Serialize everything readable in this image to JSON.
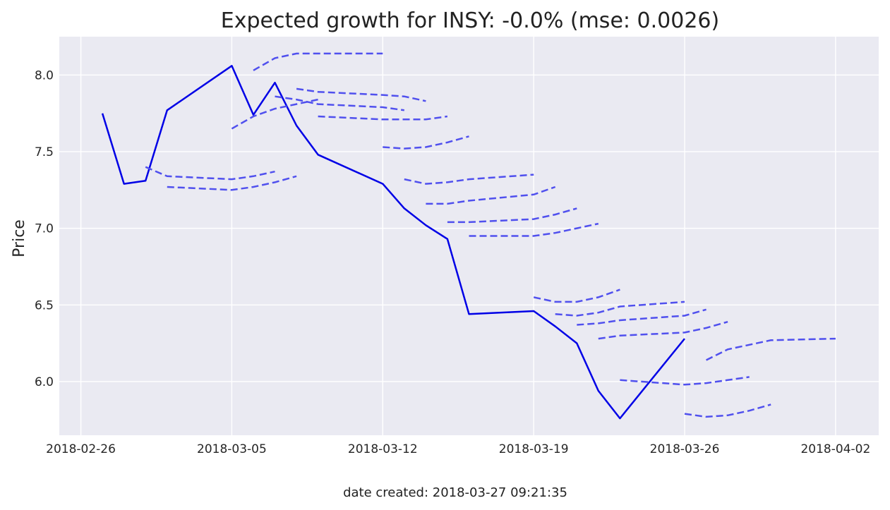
{
  "chart_data": {
    "type": "line",
    "title": "Expected growth for INSY: -0.0% (mse: 0.0026)",
    "xlabel": "",
    "ylabel": "Price",
    "footer": "date created: 2018-03-27 09:21:35",
    "x_ticks": [
      "2018-02-26",
      "2018-03-05",
      "2018-03-12",
      "2018-03-19",
      "2018-03-26",
      "2018-04-02"
    ],
    "y_ticks": [
      "6.0",
      "6.5",
      "7.0",
      "7.5",
      "8.0"
    ],
    "xlim": [
      "2018-02-25",
      "2018-04-04"
    ],
    "ylim": [
      5.65,
      8.25
    ],
    "grid": true,
    "background": "#eaeaf2",
    "colors": {
      "actual": "#0000e6",
      "forecast": "#5050ee"
    },
    "series": [
      {
        "style": "solid",
        "x": [
          "2018-02-27",
          "2018-02-28",
          "2018-03-01",
          "2018-03-02",
          "2018-03-05",
          "2018-03-06",
          "2018-03-07",
          "2018-03-08",
          "2018-03-09",
          "2018-03-12",
          "2018-03-13",
          "2018-03-14",
          "2018-03-15",
          "2018-03-16",
          "2018-03-19",
          "2018-03-20",
          "2018-03-21",
          "2018-03-22",
          "2018-03-23",
          "2018-03-26"
        ],
        "values": [
          7.75,
          7.29,
          7.31,
          7.77,
          8.06,
          7.74,
          7.95,
          7.67,
          7.48,
          7.29,
          7.13,
          7.02,
          6.93,
          6.44,
          6.46,
          6.36,
          6.25,
          5.94,
          5.76,
          6.28
        ]
      },
      {
        "style": "dashed",
        "x": [
          "2018-03-01",
          "2018-03-02",
          "2018-03-05",
          "2018-03-06",
          "2018-03-07"
        ],
        "values": [
          7.4,
          7.34,
          7.32,
          7.34,
          7.37
        ]
      },
      {
        "style": "dashed",
        "x": [
          "2018-03-02",
          "2018-03-05",
          "2018-03-06",
          "2018-03-07",
          "2018-03-08"
        ],
        "values": [
          7.27,
          7.25,
          7.27,
          7.3,
          7.34
        ]
      },
      {
        "style": "dashed",
        "x": [
          "2018-03-05",
          "2018-03-06",
          "2018-03-07",
          "2018-03-08",
          "2018-03-09"
        ],
        "values": [
          7.65,
          7.73,
          7.78,
          7.81,
          7.84
        ]
      },
      {
        "style": "dashed",
        "x": [
          "2018-03-06",
          "2018-03-07",
          "2018-03-08",
          "2018-03-09",
          "2018-03-12"
        ],
        "values": [
          8.03,
          8.11,
          8.14,
          8.14,
          8.14
        ]
      },
      {
        "style": "dashed",
        "x": [
          "2018-03-07",
          "2018-03-08",
          "2018-03-09",
          "2018-03-12",
          "2018-03-13"
        ],
        "values": [
          7.86,
          7.84,
          7.81,
          7.79,
          7.77
        ]
      },
      {
        "style": "dashed",
        "x": [
          "2018-03-08",
          "2018-03-09",
          "2018-03-12",
          "2018-03-13",
          "2018-03-14"
        ],
        "values": [
          7.91,
          7.89,
          7.87,
          7.86,
          7.83
        ]
      },
      {
        "style": "dashed",
        "x": [
          "2018-03-09",
          "2018-03-12",
          "2018-03-13",
          "2018-03-14",
          "2018-03-15"
        ],
        "values": [
          7.73,
          7.71,
          7.71,
          7.71,
          7.73
        ]
      },
      {
        "style": "dashed",
        "x": [
          "2018-03-12",
          "2018-03-13",
          "2018-03-14",
          "2018-03-15",
          "2018-03-16"
        ],
        "values": [
          7.53,
          7.52,
          7.53,
          7.56,
          7.6
        ]
      },
      {
        "style": "dashed",
        "x": [
          "2018-03-13",
          "2018-03-14",
          "2018-03-15",
          "2018-03-16",
          "2018-03-19"
        ],
        "values": [
          7.32,
          7.29,
          7.3,
          7.32,
          7.35
        ]
      },
      {
        "style": "dashed",
        "x": [
          "2018-03-14",
          "2018-03-15",
          "2018-03-16",
          "2018-03-19",
          "2018-03-20"
        ],
        "values": [
          7.16,
          7.16,
          7.18,
          7.22,
          7.27
        ]
      },
      {
        "style": "dashed",
        "x": [
          "2018-03-15",
          "2018-03-16",
          "2018-03-19",
          "2018-03-20",
          "2018-03-21"
        ],
        "values": [
          7.04,
          7.04,
          7.06,
          7.09,
          7.13
        ]
      },
      {
        "style": "dashed",
        "x": [
          "2018-03-16",
          "2018-03-19",
          "2018-03-20",
          "2018-03-21",
          "2018-03-22"
        ],
        "values": [
          6.95,
          6.95,
          6.97,
          7.0,
          7.03
        ]
      },
      {
        "style": "dashed",
        "x": [
          "2018-03-19",
          "2018-03-20",
          "2018-03-21",
          "2018-03-22",
          "2018-03-23"
        ],
        "values": [
          6.55,
          6.52,
          6.52,
          6.55,
          6.6
        ]
      },
      {
        "style": "dashed",
        "x": [
          "2018-03-20",
          "2018-03-21",
          "2018-03-22",
          "2018-03-23",
          "2018-03-26"
        ],
        "values": [
          6.44,
          6.43,
          6.45,
          6.49,
          6.52
        ]
      },
      {
        "style": "dashed",
        "x": [
          "2018-03-21",
          "2018-03-22",
          "2018-03-23",
          "2018-03-26",
          "2018-03-27"
        ],
        "values": [
          6.37,
          6.38,
          6.4,
          6.43,
          6.47
        ]
      },
      {
        "style": "dashed",
        "x": [
          "2018-03-22",
          "2018-03-23",
          "2018-03-26",
          "2018-03-27",
          "2018-03-28"
        ],
        "values": [
          6.28,
          6.3,
          6.32,
          6.35,
          6.39
        ]
      },
      {
        "style": "dashed",
        "x": [
          "2018-03-23",
          "2018-03-26",
          "2018-03-27",
          "2018-03-28",
          "2018-03-29"
        ],
        "values": [
          6.01,
          5.98,
          5.99,
          6.01,
          6.03
        ]
      },
      {
        "style": "dashed",
        "x": [
          "2018-03-26",
          "2018-03-27",
          "2018-03-28",
          "2018-03-29",
          "2018-03-30"
        ],
        "values": [
          5.79,
          5.77,
          5.78,
          5.81,
          5.85
        ]
      },
      {
        "style": "dashed",
        "x": [
          "2018-03-27",
          "2018-03-28",
          "2018-03-29",
          "2018-03-30",
          "2018-04-02"
        ],
        "values": [
          6.14,
          6.21,
          6.24,
          6.27,
          6.28
        ]
      }
    ]
  }
}
